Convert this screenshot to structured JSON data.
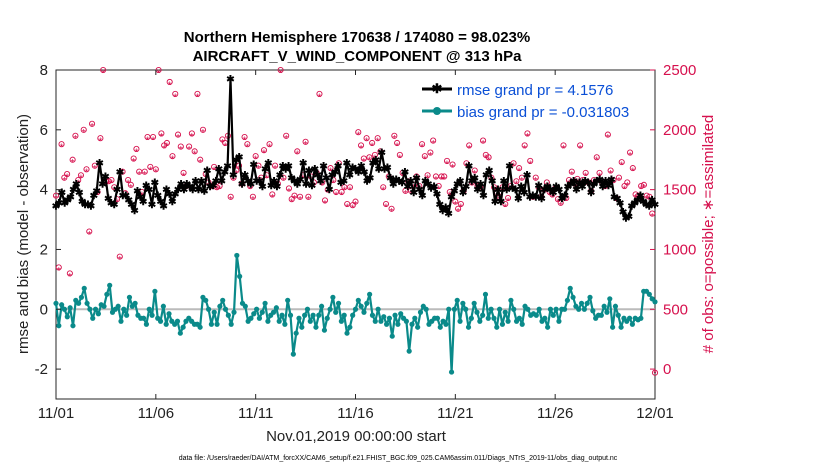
{
  "chart_data": {
    "type": "line",
    "title": "Northern Hemisphere 170638 / 174080 = 98.023%",
    "subtitle": "AIRCRAFT_V_WIND_COMPONENT @ 313 hPa",
    "xlabel": "Nov.01,2019 00:00:00 start",
    "ylabel": "rmse and bias (model - observation)",
    "y2label": "# of obs: o=possible; ∗=assimilated",
    "footer": "data file: /Users/raeder/DAI/ATM_forcXX/CAM6_setup/f.e21.FHIST_BGC.f09_025.CAM6assim.011/Diags_NTrS_2019-11/obs_diag_output.nc",
    "xlim": [
      0,
      30
    ],
    "ylim": [
      -3,
      8
    ],
    "y2lim": [
      -250,
      2500
    ],
    "xticks": [
      0,
      5,
      10,
      15,
      20,
      25,
      30
    ],
    "xtick_labels": [
      "11/01",
      "11/06",
      "11/11",
      "11/16",
      "11/21",
      "11/26",
      "12/01"
    ],
    "yticks": [
      -2,
      0,
      2,
      4,
      6,
      8
    ],
    "ytick_labels": [
      "-2",
      "0",
      "2",
      "4",
      "6",
      "8"
    ],
    "y2ticks": [
      0,
      500,
      1000,
      1500,
      2000,
      2500
    ],
    "y2tick_labels": [
      "0",
      "500",
      "1000",
      "1500",
      "2000",
      "2500"
    ],
    "legend_position": "top-right",
    "colors": {
      "rmse": "#000000",
      "bias": "#0a8a8a",
      "obs": "#d6104d",
      "zero": "#bbbbbb",
      "legend_text": "#0a4fd6"
    },
    "series": [
      {
        "name": "rmse grand pr = 4.1576",
        "key": "rmse",
        "values": [
          3.45,
          3.55,
          3.9,
          3.55,
          3.65,
          3.75,
          4.0,
          4.2,
          3.9,
          3.6,
          3.5,
          3.5,
          3.45,
          3.8,
          3.95,
          4.9,
          4.2,
          4.45,
          3.7,
          3.55,
          3.5,
          4.0,
          4.6,
          3.8,
          3.8,
          3.65,
          3.5,
          3.3,
          3.95,
          3.75,
          3.6,
          4.15,
          4.0,
          3.5,
          4.25,
          3.8,
          3.6,
          3.45,
          4.0,
          3.85,
          3.6,
          3.85,
          4.0,
          4.2,
          4.0,
          4.2,
          4.1,
          4.0,
          4.3,
          4.0,
          4.3,
          3.95,
          4.65,
          4.1,
          4.15,
          4.3,
          4.7,
          4.3,
          4.6,
          4.8,
          7.7,
          4.5,
          5.0,
          5.1,
          4.2,
          4.5,
          4.3,
          4.2,
          4.85,
          4.3,
          4.3,
          4.1,
          4.7,
          4.9,
          4.15,
          4.3,
          4.1,
          4.5,
          4.8,
          4.7,
          4.8,
          4.4,
          4.3,
          4.2,
          4.35,
          4.9,
          4.2,
          4.65,
          4.15,
          4.7,
          4.5,
          4.3,
          4.8,
          4.4,
          4.0,
          4.5,
          4.6,
          4.8,
          4.25,
          4.3,
          4.9,
          4.5,
          4.75,
          4.7,
          4.6,
          4.8,
          4.6,
          4.3,
          4.4,
          4.9,
          5.0,
          4.7,
          5.25,
          4.7,
          4.75,
          4.4,
          4.2,
          4.35,
          4.3,
          4.25,
          4.6,
          4.1,
          4.3,
          3.9,
          4.4,
          4.0,
          3.8,
          4.3,
          4.2,
          4.05,
          4.1,
          3.85,
          3.5,
          3.3,
          3.4,
          3.2,
          3.75,
          3.95,
          4.2,
          4.3,
          3.9,
          4.1,
          4.8,
          4.3,
          4.4,
          4.0,
          4.2,
          3.8,
          4.5,
          4.65,
          4.3,
          3.6,
          4.0,
          3.6,
          4.3,
          4.0,
          4.8,
          4.05,
          4.0,
          3.7,
          4.1,
          3.9,
          4.5,
          3.75,
          3.8,
          3.75,
          4.15,
          3.7,
          4.0,
          4.1,
          4.0,
          3.9,
          4.1,
          4.0,
          3.7,
          3.8,
          4.1,
          4.2,
          4.3,
          4.0,
          4.25,
          4.1,
          4.3,
          4.25,
          3.9,
          4.2,
          4.3,
          4.35,
          4.1,
          4.3,
          4.15,
          4.35,
          3.75,
          3.7,
          3.55,
          3.25,
          3.05,
          3.1,
          3.45,
          3.55,
          3.65,
          3.8,
          3.6,
          3.5,
          3.45,
          3.65,
          3.5
        ]
      },
      {
        "name": "bias grand pr = -0.031803",
        "key": "bias",
        "values": [
          0.2,
          -0.55,
          0.15,
          0.0,
          -0.25,
          0.05,
          -0.55,
          0.3,
          0.2,
          0.4,
          0.7,
          0.2,
          0.0,
          -0.3,
          0.0,
          -0.15,
          0.15,
          0.1,
          0.5,
          0.8,
          -0.1,
          0.0,
          0.1,
          -0.4,
          0.0,
          -0.2,
          0.4,
          0.1,
          0.2,
          -0.2,
          -0.3,
          -0.3,
          -0.5,
          0.0,
          -0.2,
          0.6,
          -0.3,
          -0.4,
          0.1,
          -0.5,
          -0.15,
          -0.4,
          -0.5,
          -0.4,
          -0.8,
          -0.6,
          -0.4,
          -0.3,
          -0.4,
          -0.5,
          -0.5,
          -0.6,
          0.4,
          0.3,
          0.0,
          -0.5,
          -0.1,
          -0.5,
          0.1,
          0.3,
          0.0,
          -0.2,
          -0.5,
          -0.1,
          1.8,
          1.1,
          0.2,
          0.1,
          -0.4,
          -0.3,
          -0.15,
          0.0,
          -0.3,
          -0.1,
          0.2,
          -0.4,
          -0.2,
          -0.1,
          0.05,
          -0.4,
          -0.2,
          -0.5,
          0.3,
          -0.2,
          -1.5,
          -0.8,
          -0.3,
          -0.6,
          -0.2,
          0.0,
          -0.4,
          -0.2,
          -0.6,
          -0.2,
          0.1,
          -0.7,
          -0.3,
          0.0,
          0.4,
          -0.1,
          0.2,
          -0.4,
          -0.2,
          -0.8,
          -0.6,
          -0.2,
          0.0,
          0.3,
          0.1,
          -0.1,
          0.2,
          0.5,
          -0.2,
          -0.4,
          0.0,
          -0.4,
          -0.25,
          -0.5,
          -0.3,
          -0.9,
          -0.2,
          -0.5,
          -0.15,
          -0.3,
          -0.4,
          -1.4,
          -0.5,
          -0.3,
          -0.6,
          -0.1,
          0.1,
          0.0,
          -0.5,
          -0.4,
          -0.3,
          -0.3,
          -0.6,
          -0.4,
          -0.5,
          0.0,
          -2.1,
          0.0,
          0.3,
          -0.4,
          0.2,
          0.0,
          -0.6,
          -0.3,
          0.2,
          -0.1,
          -0.4,
          -0.2,
          0.5,
          -0.3,
          0.0,
          -0.3,
          -0.6,
          0.0,
          -0.5,
          -0.1,
          -0.4,
          0.3,
          0.0,
          -0.4,
          -0.3,
          -0.5,
          0.1,
          0.0,
          -0.2,
          -0.15,
          -0.2,
          0.0,
          -0.4,
          -0.3,
          -0.6,
          0.0,
          -0.2,
          0.0,
          -0.4,
          0.0,
          0.0,
          0.3,
          0.7,
          0.4,
          0.1,
          0.0,
          0.2,
          0.0,
          0.2,
          0.4,
          -0.05,
          -0.3,
          -0.2,
          -0.2,
          0.1,
          -0.1,
          0.35,
          -0.6,
          0.1,
          -0.2,
          -0.6,
          -0.3,
          -0.4,
          -0.3,
          -0.5,
          -0.3,
          -0.35,
          -0.3,
          0.6,
          0.6,
          0.5,
          0.35,
          0.25
        ]
      }
    ],
    "obs_possible": [
      1450,
      850,
      1880,
      1600,
      1630,
      800,
      1750,
      1950,
      1580,
      1620,
      2000,
      1670,
      1150,
      2050,
      1700,
      1480,
      1930,
      2500,
      1570,
      1570,
      1580,
      1520,
      1420,
      940,
      1650,
      1470,
      1580,
      1540,
      1760,
      1840,
      1650,
      1480,
      1650,
      1940,
      1690,
      1940,
      1670,
      2500,
      1970,
      1870,
      1890,
      2400,
      1780,
      2300,
      1960,
      1860,
      1640,
      1530,
      1860,
      1970,
      1820,
      2300,
      1750,
      2000,
      1630,
      1560,
      1530,
      1690,
      1520,
      1530,
      1920,
      1890,
      1950,
      1440,
      1600,
      1660,
      1700,
      1550,
      1940,
      1880,
      1530,
      1440,
      1780,
      1700,
      1600,
      1830,
      1620,
      1880,
      1460,
      1700,
      1550,
      2500,
      1600,
      1950,
      1510,
      1420,
      1450,
      1820,
      1440,
      1620,
      1900,
      1440,
      1610,
      1560,
      1640,
      2300,
      1560,
      1410,
      1500,
      1680,
      1580,
      1480,
      1720,
      1480,
      1520,
      1380,
      1520,
      1370,
      1400,
      1980,
      1870,
      1760,
      1930,
      1770,
      1890,
      1790,
      1930,
      1820,
      1520,
      1380,
      1610,
      1340,
      1950,
      1890,
      1790,
      1640,
      1490,
      1570,
      1490,
      1540,
      1610,
      1530,
      1880,
      1780,
      1620,
      1810,
      1910,
      1610,
      1530,
      1610,
      1610,
      1740,
      1480,
      1710,
      1400,
      1340,
      1380,
      1490,
      1720,
      1870,
      1560,
      1660,
      1530,
      1520,
      1910,
      1790,
      1770,
      1600,
      1520,
      1470,
      1440,
      1520,
      1380,
      1430,
      1530,
      1720,
      1570,
      1680,
      1600,
      1870,
      1970,
      1740,
      1440,
      1600,
      1520,
      1440,
      1500,
      1560,
      1480,
      1460,
      1510,
      1420,
      1390,
      1870,
      1430,
      1580,
      1650,
      1550,
      1590,
      1870,
      1580,
      1640,
      1560,
      1490,
      1580,
      1770,
      1640,
      1550,
      1530,
      1960,
      1660,
      1580,
      1430,
      1600,
      1730,
      1530,
      1560,
      1810,
      1680,
      1460,
      1450,
      1530,
      1540,
      1450,
      1440,
      1300,
      -30
    ],
    "obs_assimilated": [
      1430,
      830,
      1860,
      1580,
      1610,
      780,
      1730,
      1930,
      1560,
      1600,
      1980,
      1650,
      1130,
      2030,
      1680,
      1460,
      1910,
      2480,
      1550,
      1550,
      1560,
      1500,
      1400,
      920,
      1630,
      1450,
      1560,
      1520,
      1740,
      1820,
      1630,
      1460,
      1630,
      1920,
      1670,
      1920,
      1650,
      2480,
      1950,
      1850,
      1870,
      2380,
      1760,
      2280,
      1940,
      1840,
      1620,
      1510,
      1840,
      1950,
      1800,
      2280,
      1730,
      1980,
      1610,
      1540,
      1510,
      1670,
      1500,
      1510,
      1900,
      1870,
      1930,
      1420,
      1580,
      1640,
      1680,
      1530,
      1920,
      1860,
      1510,
      1420,
      1760,
      1680,
      1580,
      1810,
      1600,
      1860,
      1440,
      1680,
      1530,
      2480,
      1580,
      1930,
      1490,
      1400,
      1430,
      1800,
      1420,
      1600,
      1880,
      1420,
      1590,
      1540,
      1620,
      2280,
      1540,
      1390,
      1480,
      1660,
      1560,
      1460,
      1700,
      1460,
      1500,
      1360,
      1500,
      1350,
      1380,
      1960,
      1850,
      1740,
      1910,
      1750,
      1870,
      1770,
      1910,
      1800,
      1500,
      1360,
      1590,
      1320,
      1930,
      1870,
      1770,
      1620,
      1470,
      1550,
      1470,
      1520,
      1590,
      1510,
      1860,
      1760,
      1600,
      1790,
      1890,
      1590,
      1510,
      1590,
      1590,
      1720,
      1460,
      1690,
      1380,
      1320,
      1360,
      1470,
      1700,
      1850,
      1540,
      1640,
      1510,
      1500,
      1890,
      1770,
      1750,
      1580,
      1500,
      1450,
      1420,
      1500,
      1360,
      1410,
      1510,
      1700,
      1550,
      1660,
      1580,
      1850,
      1950,
      1720,
      1420,
      1580,
      1500,
      1420,
      1480,
      1540,
      1460,
      1440,
      1490,
      1400,
      1370,
      1850,
      1410,
      1560,
      1630,
      1530,
      1570,
      1850,
      1560,
      1620,
      1540,
      1470,
      1560,
      1750,
      1620,
      1530,
      1510,
      1940,
      1640,
      1560,
      1410,
      1580,
      1710,
      1510,
      1540,
      1790,
      1660,
      1440,
      1430,
      1510,
      1520,
      1430,
      1420,
      1280,
      -30
    ],
    "legend": {
      "rmse_label": "rmse grand pr = 4.1576",
      "bias_label": "bias grand pr = -0.031803"
    }
  }
}
